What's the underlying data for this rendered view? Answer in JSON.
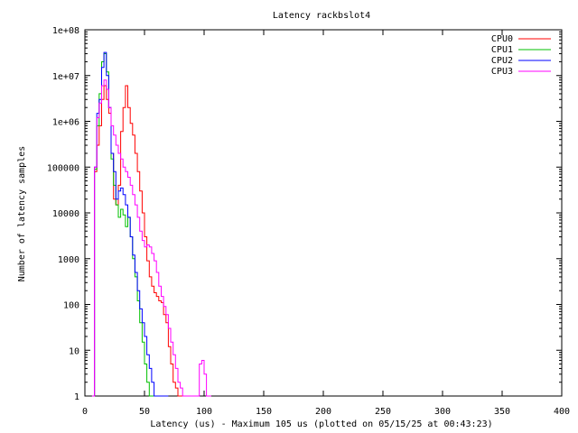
{
  "chart_data": {
    "type": "line",
    "title": "Latency rackbslot4",
    "xlabel": "Latency (us) - Maximum 105 us (plotted on 05/15/25 at 00:43:23)",
    "ylabel": "Number of latency samples",
    "xlim": [
      0,
      400
    ],
    "ylim": [
      1,
      100000000
    ],
    "yscale": "log",
    "grid": false,
    "legend_position": "top-right",
    "x_ticks": [
      {
        "v": 0,
        "label": "0"
      },
      {
        "v": 50,
        "label": "50"
      },
      {
        "v": 100,
        "label": "100"
      },
      {
        "v": 150,
        "label": "150"
      },
      {
        "v": 200,
        "label": "200"
      },
      {
        "v": 250,
        "label": "250"
      },
      {
        "v": 300,
        "label": "300"
      },
      {
        "v": 350,
        "label": "350"
      },
      {
        "v": 400,
        "label": "400"
      }
    ],
    "y_ticks": [
      {
        "v": 1,
        "label": "1"
      },
      {
        "v": 10,
        "label": "10"
      },
      {
        "v": 100,
        "label": "100"
      },
      {
        "v": 1000,
        "label": "1000"
      },
      {
        "v": 10000,
        "label": "10000"
      },
      {
        "v": 100000,
        "label": "100000"
      },
      {
        "v": 1000000,
        "label": "1e+06"
      },
      {
        "v": 10000000,
        "label": "1e+07"
      },
      {
        "v": 100000000,
        "label": "1e+08"
      }
    ],
    "series": [
      {
        "name": "CPU0",
        "color": "#ff0000",
        "x": [
          6,
          8,
          10,
          12,
          14,
          16,
          18,
          20,
          22,
          24,
          26,
          28,
          30,
          32,
          34,
          36,
          38,
          40,
          42,
          44,
          46,
          48,
          50,
          52,
          54,
          56,
          58,
          60,
          62,
          64,
          66,
          68,
          70,
          72,
          74,
          76,
          78,
          80
        ],
        "y": [
          1,
          80000,
          300000,
          800000,
          3000000,
          6000000,
          3000000,
          1500000,
          200000,
          20000,
          15000,
          40000,
          600000,
          2000000,
          6000000,
          2000000,
          900000,
          500000,
          200000,
          80000,
          30000,
          10000,
          3000,
          900,
          400,
          250,
          180,
          150,
          120,
          110,
          60,
          40,
          12,
          5,
          2,
          1.5,
          1,
          1
        ]
      },
      {
        "name": "CPU1",
        "color": "#00c000",
        "x": [
          6,
          8,
          10,
          12,
          14,
          16,
          18,
          20,
          22,
          24,
          26,
          28,
          30,
          32,
          34,
          36,
          38,
          40,
          42,
          44,
          46,
          48,
          50,
          52,
          54,
          56,
          58,
          60,
          62
        ],
        "y": [
          1,
          90000,
          800000,
          4000000,
          20000000,
          30000000,
          12000000,
          2000000,
          150000,
          40000,
          15000,
          8000,
          12000,
          9000,
          5000,
          8000,
          3000,
          1000,
          400,
          120,
          40,
          15,
          5,
          2,
          1,
          1,
          1,
          1,
          1
        ]
      },
      {
        "name": "CPU2",
        "color": "#0000ff",
        "x": [
          6,
          8,
          10,
          12,
          14,
          16,
          18,
          20,
          22,
          24,
          26,
          28,
          30,
          32,
          34,
          36,
          38,
          40,
          42,
          44,
          46,
          48,
          50,
          52,
          54,
          56,
          58,
          60,
          62,
          64,
          66,
          68
        ],
        "y": [
          1,
          100000,
          1500000,
          3000000,
          15000000,
          32000000,
          10000000,
          2000000,
          200000,
          80000,
          20000,
          30000,
          35000,
          25000,
          15000,
          8000,
          3000,
          1200,
          500,
          200,
          80,
          40,
          20,
          8,
          4,
          2,
          1,
          1,
          1,
          1,
          1,
          1
        ]
      },
      {
        "name": "CPU3",
        "color": "#ff00ff",
        "x": [
          6,
          8,
          10,
          12,
          14,
          16,
          18,
          20,
          22,
          24,
          26,
          28,
          30,
          32,
          34,
          36,
          38,
          40,
          42,
          44,
          46,
          48,
          50,
          52,
          54,
          56,
          58,
          60,
          62,
          64,
          66,
          68,
          70,
          72,
          74,
          76,
          78,
          80,
          82,
          84,
          86,
          88,
          90,
          92,
          94,
          96,
          98,
          100,
          102,
          104
        ],
        "y": [
          1,
          100000,
          1200000,
          2500000,
          6000000,
          8000000,
          5000000,
          2000000,
          800000,
          500000,
          300000,
          200000,
          150000,
          100000,
          80000,
          60000,
          40000,
          25000,
          15000,
          8000,
          4000,
          2500,
          1800,
          2000,
          1800,
          1300,
          900,
          500,
          250,
          150,
          90,
          60,
          30,
          15,
          8,
          4,
          2,
          1.5,
          1,
          1,
          1,
          1,
          1,
          1,
          1,
          5,
          6,
          3,
          1,
          1
        ]
      }
    ]
  }
}
